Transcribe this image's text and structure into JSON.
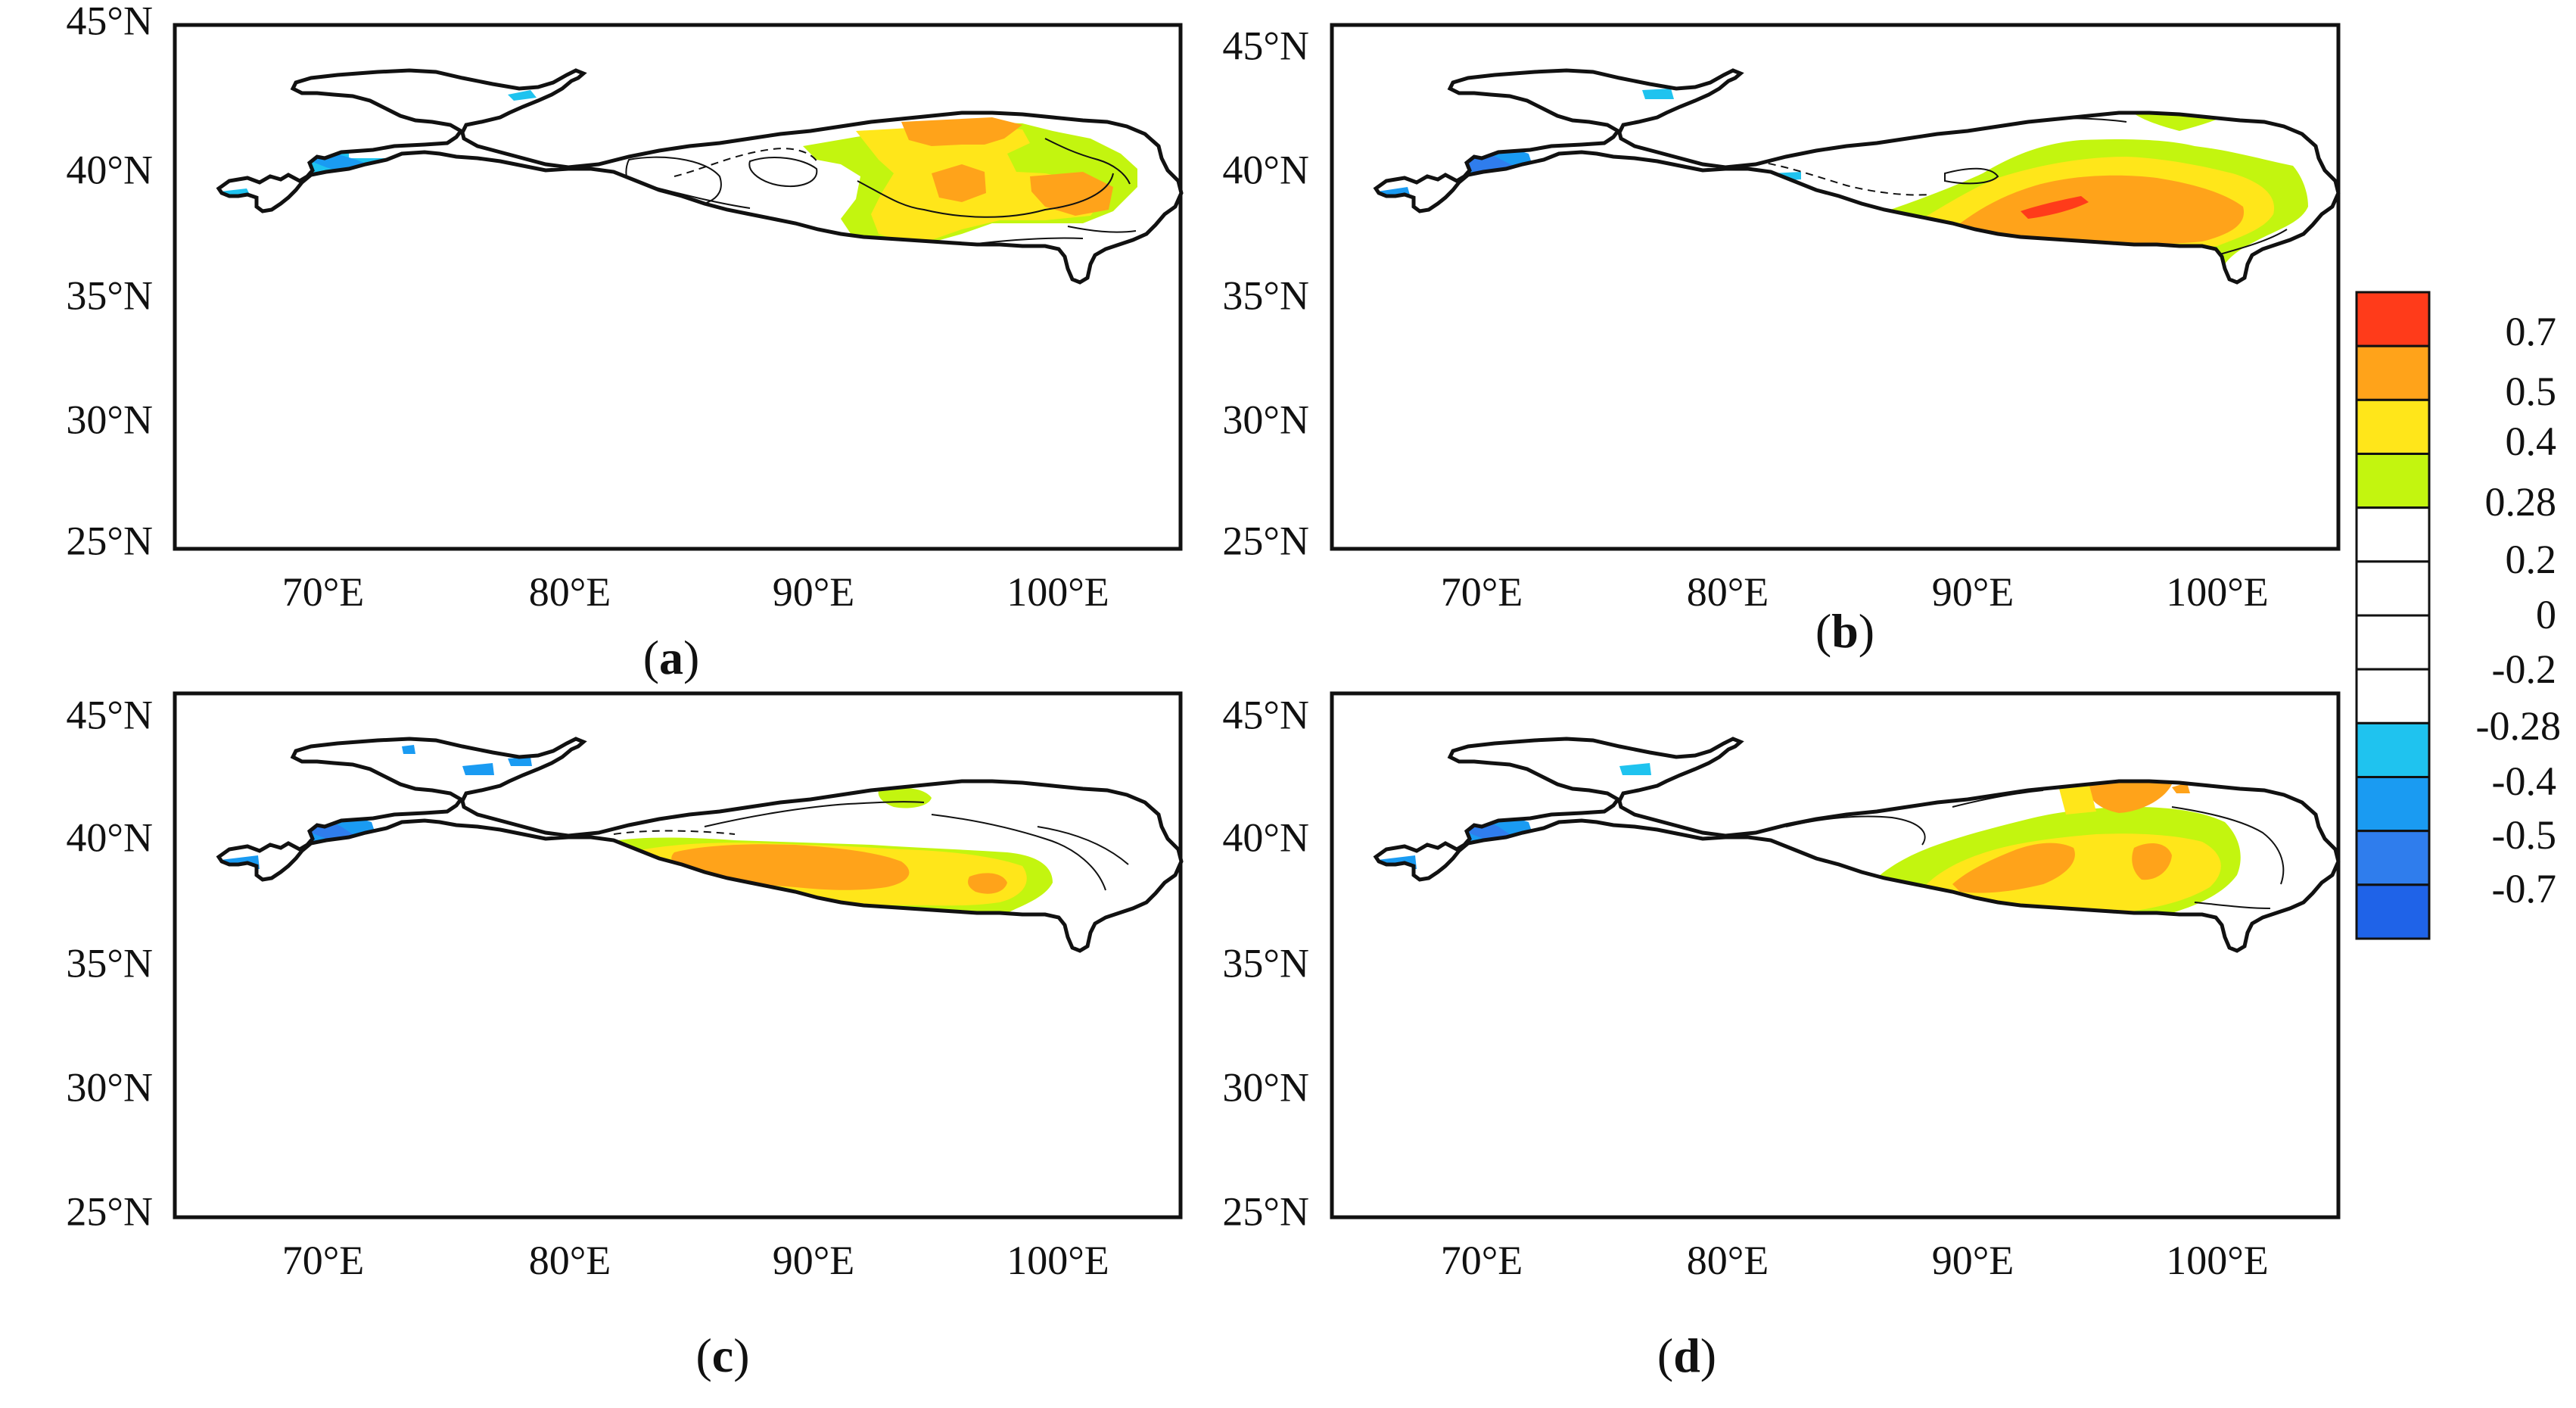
{
  "figure": {
    "lat_ticks": [
      "45°N",
      "40°N",
      "35°N",
      "30°N",
      "25°N"
    ],
    "lon_ticks": [
      "70°E",
      "80°E",
      "90°E",
      "100°E"
    ],
    "panels": [
      {
        "id": "a",
        "label_open": "(",
        "label_letter": "a",
        "label_close": ")"
      },
      {
        "id": "b",
        "label_open": "(",
        "label_letter": "b",
        "label_close": ")"
      },
      {
        "id": "c",
        "label_open": "(",
        "label_letter": "c",
        "label_close": ")"
      },
      {
        "id": "d",
        "label_open": "(",
        "label_letter": "d",
        "label_close": ")"
      }
    ]
  },
  "colorbar": {
    "labels": [
      "0.7",
      "0.5",
      "0.4",
      "0.28",
      "0.2",
      "0",
      "-0.2",
      "-0.28",
      "-0.4",
      "-0.5",
      "-0.7"
    ],
    "colors": [
      "#ff3b1a",
      "#ffa31a",
      "#ffe61a",
      "#c3f50f",
      "#ffffff",
      "#ffffff",
      "#ffffff",
      "#ffffff",
      "#1fc3ef",
      "#1a9bf2",
      "#2f7ded",
      "#1f63e8"
    ]
  },
  "colors": {
    "red": "#ff3b1a",
    "orange": "#ffa31a",
    "yellow": "#ffe61a",
    "lime": "#c3f50f",
    "cyan": "#1fc3ef",
    "blue1": "#1a9bf2",
    "blue2": "#2f7ded"
  }
}
